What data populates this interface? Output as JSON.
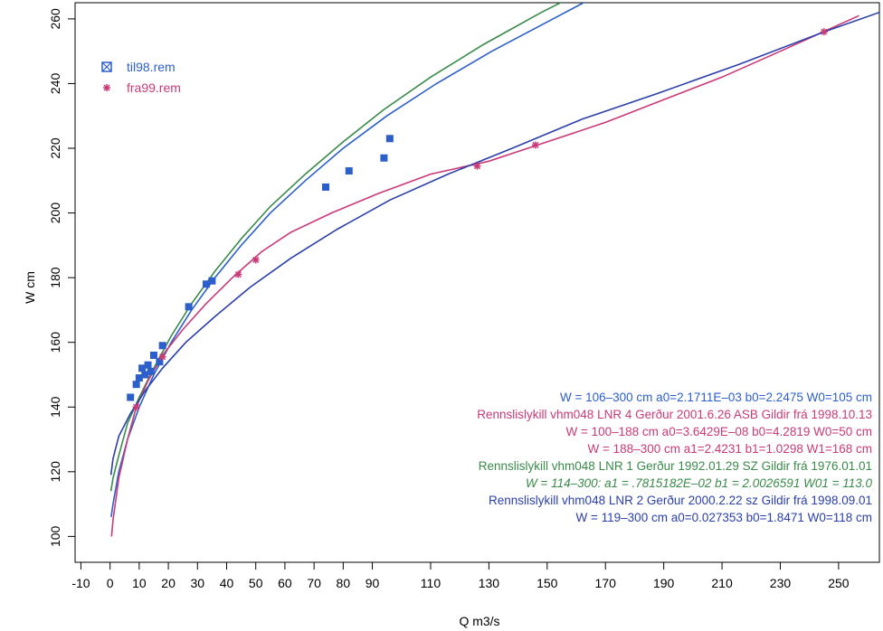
{
  "chart_data": {
    "type": "scatter",
    "xlabel": "Q m3/s",
    "ylabel": "W cm",
    "xlim": [
      -12,
      264
    ],
    "ylim": [
      92,
      265
    ],
    "xticks": [
      -10,
      0,
      10,
      20,
      30,
      40,
      50,
      60,
      70,
      80,
      90,
      110,
      130,
      150,
      170,
      190,
      210,
      230,
      250
    ],
    "yticks": [
      100,
      120,
      140,
      160,
      180,
      200,
      220,
      240,
      260
    ],
    "legend_position": "top-left",
    "colors": {
      "blue": "#2c5fc9",
      "magenta": "#c83a78",
      "green": "#3a8a4a",
      "navy": "#2a3fa8",
      "axis": "#000000"
    },
    "series": [
      {
        "name": "til98.rem",
        "kind": "points",
        "marker": "square",
        "color": "#2c5fc9",
        "points": [
          [
            7,
            143
          ],
          [
            9,
            147
          ],
          [
            10,
            149
          ],
          [
            11,
            152
          ],
          [
            12,
            150
          ],
          [
            13,
            153
          ],
          [
            14,
            151
          ],
          [
            15,
            156
          ],
          [
            17,
            154
          ],
          [
            18,
            159
          ],
          [
            27,
            171
          ],
          [
            33,
            178
          ],
          [
            35,
            179
          ],
          [
            74,
            208
          ],
          [
            82,
            213
          ],
          [
            94,
            217
          ],
          [
            96,
            223
          ]
        ]
      },
      {
        "name": "fra99.rem",
        "kind": "points",
        "marker": "asterisk",
        "color": "#c83a78",
        "points": [
          [
            9,
            140
          ],
          [
            18,
            155.5
          ],
          [
            44,
            181
          ],
          [
            50,
            185.5
          ],
          [
            126,
            214.5
          ],
          [
            146,
            221
          ],
          [
            245,
            256
          ]
        ]
      },
      {
        "kind": "line",
        "color": "#2c5fc9",
        "points": [
          [
            0.4,
            106
          ],
          [
            1,
            110
          ],
          [
            3,
            120
          ],
          [
            6,
            130
          ],
          [
            10,
            140
          ],
          [
            15,
            150
          ],
          [
            21,
            160
          ],
          [
            28,
            170
          ],
          [
            36,
            180
          ],
          [
            45,
            190
          ],
          [
            55,
            200
          ],
          [
            67,
            210
          ],
          [
            80,
            220
          ],
          [
            95,
            230
          ],
          [
            112,
            240
          ],
          [
            131,
            250
          ],
          [
            152,
            260
          ],
          [
            173,
            270
          ]
        ]
      },
      {
        "kind": "line",
        "color": "#3a8a4a",
        "points": [
          [
            0.3,
            114
          ],
          [
            1,
            118
          ],
          [
            3,
            125
          ],
          [
            6,
            135
          ],
          [
            10,
            143
          ],
          [
            15,
            152
          ],
          [
            21,
            162
          ],
          [
            28,
            172
          ],
          [
            36,
            182
          ],
          [
            45,
            192
          ],
          [
            55,
            202
          ],
          [
            67,
            212
          ],
          [
            80,
            222
          ],
          [
            94,
            232
          ],
          [
            110,
            242
          ],
          [
            128,
            252
          ],
          [
            148,
            262
          ],
          [
            170,
            272
          ]
        ]
      },
      {
        "kind": "line",
        "color": "#c83a78",
        "points": [
          [
            0.5,
            100
          ],
          [
            1,
            105
          ],
          [
            3,
            118
          ],
          [
            6,
            130
          ],
          [
            9,
            140
          ],
          [
            13,
            148
          ],
          [
            18,
            156
          ],
          [
            25,
            164
          ],
          [
            33,
            172
          ],
          [
            42,
            180
          ],
          [
            52,
            188
          ],
          [
            62,
            194
          ],
          [
            76,
            200
          ],
          [
            92,
            206
          ],
          [
            110,
            212
          ],
          [
            130,
            216
          ],
          [
            150,
            222
          ],
          [
            170,
            228
          ],
          [
            190,
            235
          ],
          [
            210,
            242
          ],
          [
            230,
            250
          ],
          [
            246,
            256.5
          ],
          [
            257,
            261
          ]
        ]
      },
      {
        "kind": "line",
        "color": "#2a3fa8",
        "points": [
          [
            0.3,
            119
          ],
          [
            1,
            124
          ],
          [
            3,
            131
          ],
          [
            7,
            138
          ],
          [
            12,
            145
          ],
          [
            18,
            152
          ],
          [
            26,
            160
          ],
          [
            36,
            168
          ],
          [
            48,
            177
          ],
          [
            62,
            186
          ],
          [
            78,
            195
          ],
          [
            96,
            204
          ],
          [
            116,
            212
          ],
          [
            138,
            220
          ],
          [
            162,
            229
          ],
          [
            188,
            237
          ],
          [
            216,
            246
          ],
          [
            245,
            256
          ],
          [
            264,
            262
          ]
        ]
      }
    ],
    "annotations": [
      {
        "text": "W = 106–300 cm      a0=2.1711E–03      b0=2.2475      W0=105 cm",
        "color": "#2c5fc9",
        "italic": false
      },
      {
        "text": "Rennslislykill   vhm048   LNR 4    Gerður 2001.6.26 ASB     Gildir frá 1998.10.13",
        "color": "#c83a78",
        "italic": false
      },
      {
        "text": "W = 100–188 cm      a0=3.6429E–08      b0=4.2819      W0=50 cm",
        "color": "#c83a78",
        "italic": false
      },
      {
        "text": "W = 188–300 cm    a1=2.4231      b1=1.0298      W1=168 cm",
        "color": "#c83a78",
        "italic": false
      },
      {
        "text": "Rennslislykill   vhm048   LNR  1    Gerður 1992.01.29 SZ    Gildir frá 1976.01.01",
        "color": "#3a8a4a",
        "italic": false
      },
      {
        "text": "W = 114–300:     a1 =  .7815182E–02     b1 =  2.0026591     W01 =  113.0",
        "color": "#3a8a4a",
        "italic": true
      },
      {
        "text": "Rennslislykill   vhm048   LNR 2    Gerður 2000.2.22 sz    Gildir frá 1998.09.01",
        "color": "#2a3fa8",
        "italic": false
      },
      {
        "text": "W = 119–300 cm      a0=0.027353      b0=1.8471      W0=118 cm",
        "color": "#2a3fa8",
        "italic": false
      }
    ]
  }
}
